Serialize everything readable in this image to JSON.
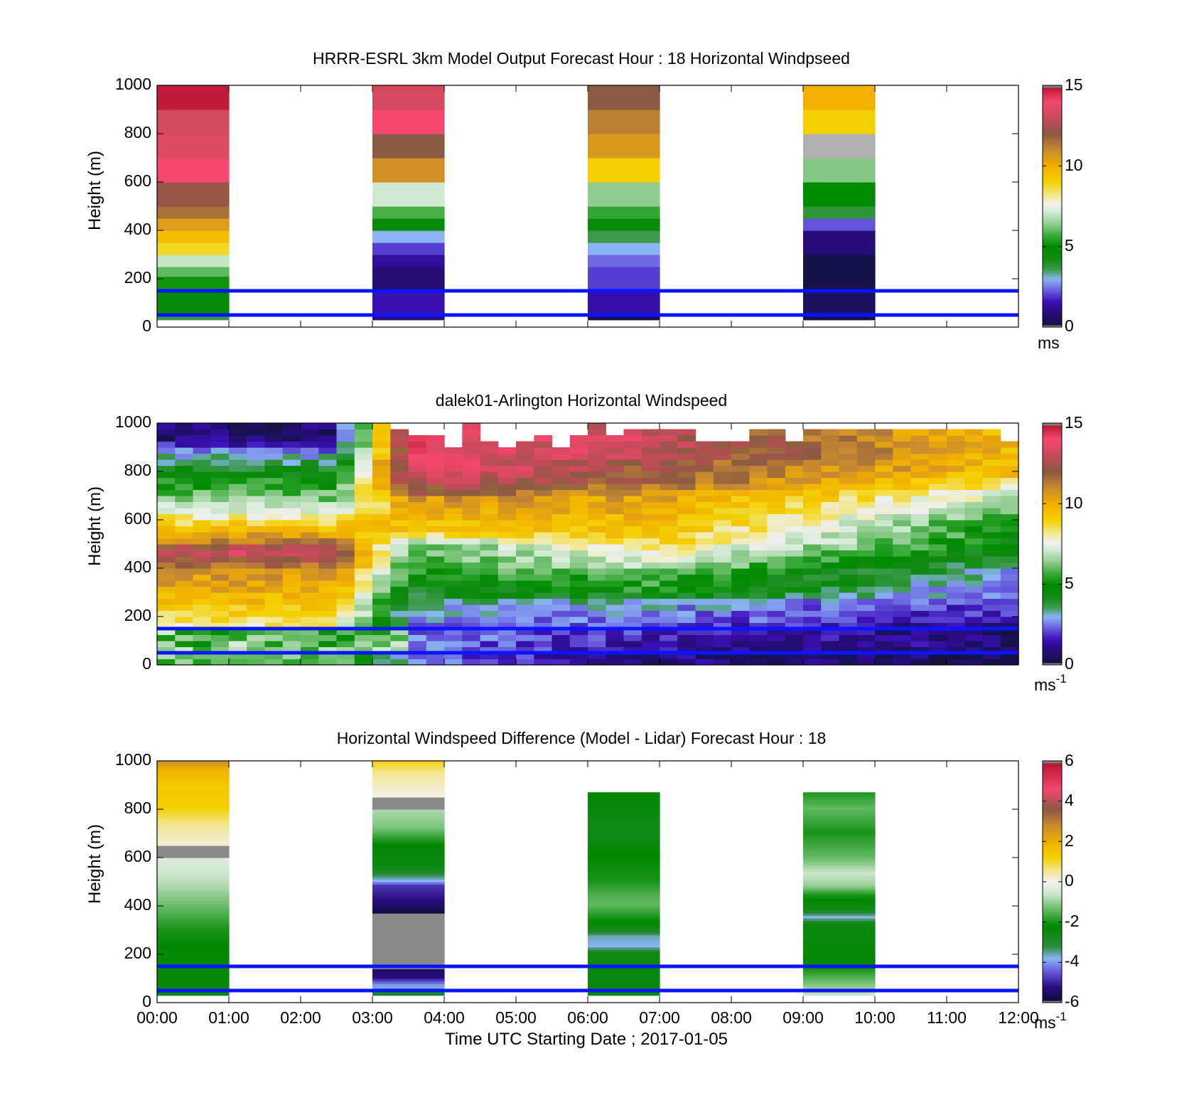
{
  "colormaps": {
    "speed": [
      [
        0,
        "#12123a"
      ],
      [
        0.5,
        "#1a1060"
      ],
      [
        1,
        "#2a0c80"
      ],
      [
        1.6,
        "#3a10b8"
      ],
      [
        2.3,
        "#6a5ee0"
      ],
      [
        3,
        "#8ab4f4"
      ],
      [
        3.6,
        "#3a9a4a"
      ],
      [
        4.3,
        "#108a10"
      ],
      [
        5,
        "#008c00"
      ],
      [
        5.7,
        "#3aaa3a"
      ],
      [
        6.4,
        "#90cc90"
      ],
      [
        7.2,
        "#d8ecd8"
      ],
      [
        7.6,
        "#f0f0f0"
      ],
      [
        8.2,
        "#f2e890"
      ],
      [
        9,
        "#f4d000"
      ],
      [
        10,
        "#f2b000"
      ],
      [
        11,
        "#c88a30"
      ],
      [
        12,
        "#8a5a42"
      ],
      [
        13,
        "#c84a5a"
      ],
      [
        14,
        "#f4486e"
      ],
      [
        15,
        "#b21030"
      ]
    ],
    "diff": [
      [
        -6,
        "#0c0c30"
      ],
      [
        -5.2,
        "#2a0c80"
      ],
      [
        -4.4,
        "#6a5ee0"
      ],
      [
        -3.8,
        "#8ab4f4"
      ],
      [
        -3.2,
        "#2a8a3a"
      ],
      [
        -2.2,
        "#008800"
      ],
      [
        -1.4,
        "#60b860"
      ],
      [
        -0.6,
        "#cce6cc"
      ],
      [
        0,
        "#f2f2f2"
      ],
      [
        0.5,
        "#f2e8a0"
      ],
      [
        1.2,
        "#f4d000"
      ],
      [
        2,
        "#f0b000"
      ],
      [
        2.8,
        "#c88a30"
      ],
      [
        3.6,
        "#8a5a42"
      ],
      [
        4.6,
        "#f4486e"
      ],
      [
        6,
        "#b21030"
      ]
    ]
  },
  "chart_data": [
    {
      "type": "heatmap",
      "title": "HRRR-ESRL 3km Model Output   Forecast Hour : 18 Horizontal Windpseed",
      "ylabel": "Height (m)",
      "ylim": [
        0,
        1000
      ],
      "yticks": [
        "0",
        "200",
        "400",
        "600",
        "800",
        "1000"
      ],
      "xlim": [
        0,
        12
      ],
      "colorbar": {
        "cmap": "speed",
        "ticks": [
          "0",
          "5",
          "10",
          "15"
        ],
        "range": [
          0,
          15
        ],
        "unit": "ms",
        "unit_sup": ""
      },
      "blue_lines": [
        150,
        50
      ],
      "columns": [
        {
          "x": [
            0,
            1
          ],
          "cells": [
            [
              30,
              50,
              3.6
            ],
            [
              50,
              150,
              4.8
            ],
            [
              150,
              210,
              5.2
            ],
            [
              210,
              250,
              6
            ],
            [
              250,
              300,
              7
            ],
            [
              300,
              350,
              8.8
            ],
            [
              350,
              400,
              9.5
            ],
            [
              400,
              450,
              10.5
            ],
            [
              450,
              500,
              11.5
            ],
            [
              500,
              600,
              12.2
            ],
            [
              600,
              700,
              14
            ],
            [
              700,
              800,
              13.5
            ],
            [
              800,
              900,
              13.2
            ],
            [
              900,
              1000,
              14.8
            ]
          ]
        },
        {
          "x": [
            3,
            4
          ],
          "cells": [
            [
              30,
              50,
              1
            ],
            [
              50,
              150,
              1.5
            ],
            [
              150,
              250,
              0.8
            ],
            [
              250,
              300,
              1.3
            ],
            [
              300,
              350,
              2
            ],
            [
              350,
              400,
              3
            ],
            [
              400,
              450,
              4.6
            ],
            [
              450,
              500,
              5.8
            ],
            [
              500,
              600,
              7.1
            ],
            [
              600,
              700,
              10.8
            ],
            [
              700,
              800,
              12
            ],
            [
              800,
              900,
              14
            ],
            [
              900,
              1000,
              13.3
            ]
          ]
        },
        {
          "x": [
            6,
            7
          ],
          "cells": [
            [
              30,
              50,
              0.3
            ],
            [
              50,
              150,
              1.4
            ],
            [
              150,
              250,
              2
            ],
            [
              250,
              300,
              2.4
            ],
            [
              300,
              350,
              3
            ],
            [
              350,
              400,
              3.6
            ],
            [
              400,
              450,
              4.6
            ],
            [
              450,
              500,
              5.6
            ],
            [
              500,
              600,
              6.4
            ],
            [
              600,
              700,
              9
            ],
            [
              700,
              800,
              10.6
            ],
            [
              800,
              900,
              11.2
            ],
            [
              900,
              1000,
              12
            ]
          ]
        },
        {
          "x": [
            9,
            10
          ],
          "cells": [
            [
              30,
              50,
              0.3
            ],
            [
              50,
              150,
              0.5
            ],
            [
              150,
              200,
              0.2
            ],
            [
              200,
              300,
              0.2
            ],
            [
              300,
              400,
              0.9
            ],
            [
              400,
              450,
              2.2
            ],
            [
              450,
              500,
              3.8
            ],
            [
              500,
              600,
              5
            ],
            [
              600,
              700,
              6.3
            ],
            [
              700,
              800,
              -99
            ],
            [
              800,
              900,
              9
            ],
            [
              900,
              1000,
              10
            ]
          ]
        }
      ]
    },
    {
      "type": "heatmap",
      "title": "dalek01-Arlington  Horizontal Windspeed",
      "ylabel": "Height (m)",
      "ylim": [
        0,
        1000
      ],
      "yticks": [
        "0",
        "200",
        "400",
        "600",
        "800",
        "1000"
      ],
      "xlim": [
        0,
        12
      ],
      "colorbar": {
        "cmap": "speed",
        "ticks": [
          "0",
          "5",
          "10",
          "15"
        ],
        "range": [
          0,
          15
        ],
        "unit": "ms",
        "unit_sup": "-1"
      },
      "blue_lines": [
        150,
        50
      ],
      "field": {
        "dt_hours": 0.25,
        "dz_m": 25,
        "ztop": [
          1000,
          1000,
          1000,
          1000,
          1000,
          1000,
          1000,
          1000,
          1000,
          1000,
          1000,
          1000,
          1000,
          975,
          950,
          950,
          900,
          980,
          920,
          900,
          920,
          940,
          900,
          950,
          1000,
          950,
          975,
          975,
          975,
          975,
          925,
          925,
          925,
          975,
          975,
          925,
          975,
          975,
          975,
          975,
          975,
          975,
          975,
          975,
          975,
          975,
          975,
          925
        ],
        "tlow_z": [
          25,
          250,
          390,
          420,
          450,
          470,
          500,
          560,
          620,
          680,
          770,
          860,
          940
        ],
        "tlow_v": [
          6,
          9.5,
          10.8,
          12,
          12.6,
          13.5,
          11.5,
          9.6,
          8,
          6.4,
          5.1,
          3.2,
          0.8
        ],
        "tmid_z": [
          25,
          200,
          400,
          500,
          550,
          680,
          720,
          800
        ],
        "tmid_v": [
          2.5,
          2.6,
          5.6,
          6,
          9.2,
          10.4,
          12.2,
          13.8
        ],
        "thigh_z": [
          25,
          120,
          200,
          260,
          300,
          380,
          420,
          540,
          580,
          700,
          760,
          820,
          880
        ],
        "thigh_v": [
          1,
          1.6,
          2.6,
          3,
          5.2,
          5.8,
          7,
          9.2,
          9.6,
          10.4,
          11.8,
          12,
          13
        ],
        "tend_z": [
          25,
          100,
          150,
          200,
          400,
          500,
          600,
          700,
          800
        ],
        "tend_v": [
          0.2,
          1,
          0.5,
          1.5,
          3,
          4.6,
          5.2,
          7.2,
          9.6
        ]
      }
    },
    {
      "type": "heatmap",
      "title": "Horizontal Windspeed Difference (Model - Lidar) Forecast Hour : 18",
      "ylabel": "Height (m)",
      "xlabel": "Time UTC  Starting Date ; 2017-01-05",
      "ylim": [
        0,
        1000
      ],
      "yticks": [
        "0",
        "200",
        "400",
        "600",
        "800",
        "1000"
      ],
      "xlim": [
        0,
        12
      ],
      "xticks": [
        "00:00",
        "01:00",
        "02:00",
        "03:00",
        "04:00",
        "05:00",
        "06:00",
        "07:00",
        "08:00",
        "09:00",
        "10:00",
        "11:00",
        "12:00"
      ],
      "colorbar": {
        "cmap": "diff",
        "ticks": [
          "-6",
          "-4",
          "-2",
          "0",
          "2",
          "4",
          "6"
        ],
        "range": [
          -6,
          6
        ],
        "unit": "ms",
        "unit_sup": "-1"
      },
      "blue_lines": [
        150,
        50
      ],
      "columns": [
        {
          "x": [
            0,
            1
          ],
          "profile": [
            [
              30,
              -2.4
            ],
            [
              200,
              -2.3
            ],
            [
              300,
              -2
            ],
            [
              400,
              -1.3
            ],
            [
              500,
              -0.7
            ],
            [
              600,
              -0.3
            ],
            [
              630,
              -99
            ],
            [
              650,
              0.2
            ],
            [
              700,
              0.4
            ],
            [
              750,
              0.7
            ],
            [
              800,
              1.2
            ],
            [
              900,
              1.4
            ],
            [
              960,
              2
            ],
            [
              1000,
              2.8
            ]
          ]
        },
        {
          "x": [
            3,
            4
          ],
          "profile": [
            [
              30,
              -2.8
            ],
            [
              70,
              -4
            ],
            [
              100,
              -5.2
            ],
            [
              140,
              -5.5
            ],
            [
              150,
              -99
            ],
            [
              360,
              -99
            ],
            [
              370,
              -5.8
            ],
            [
              420,
              -5.2
            ],
            [
              480,
              -4.8
            ],
            [
              500,
              -3.8
            ],
            [
              550,
              -2.6
            ],
            [
              650,
              -2.2
            ],
            [
              720,
              -1.2
            ],
            [
              800,
              -0.8
            ],
            [
              820,
              -99
            ],
            [
              850,
              0.1
            ],
            [
              900,
              0.3
            ],
            [
              950,
              0.6
            ],
            [
              1000,
              1.2
            ]
          ]
        },
        {
          "x": [
            6,
            7
          ],
          "profile": [
            [
              30,
              -2.4
            ],
            [
              150,
              -2.4
            ],
            [
              200,
              -2.6
            ],
            [
              230,
              -3.8
            ],
            [
              270,
              -3.6
            ],
            [
              300,
              -2.6
            ],
            [
              350,
              -2
            ],
            [
              400,
              -1.4
            ],
            [
              450,
              -1.6
            ],
            [
              500,
              -2
            ],
            [
              600,
              -2.2
            ],
            [
              700,
              -2.6
            ],
            [
              800,
              -2.4
            ],
            [
              870,
              -2.2
            ]
          ]
        },
        {
          "x": [
            9,
            10
          ],
          "profile": [
            [
              30,
              -0.6
            ],
            [
              60,
              -1
            ],
            [
              150,
              -2.2
            ],
            [
              250,
              -2.4
            ],
            [
              320,
              -2.5
            ],
            [
              350,
              -3.8
            ],
            [
              380,
              -2.6
            ],
            [
              440,
              -2
            ],
            [
              480,
              -1
            ],
            [
              530,
              -0.6
            ],
            [
              600,
              -1.4
            ],
            [
              700,
              -2
            ],
            [
              800,
              -1.4
            ],
            [
              870,
              -2
            ]
          ]
        }
      ]
    }
  ]
}
